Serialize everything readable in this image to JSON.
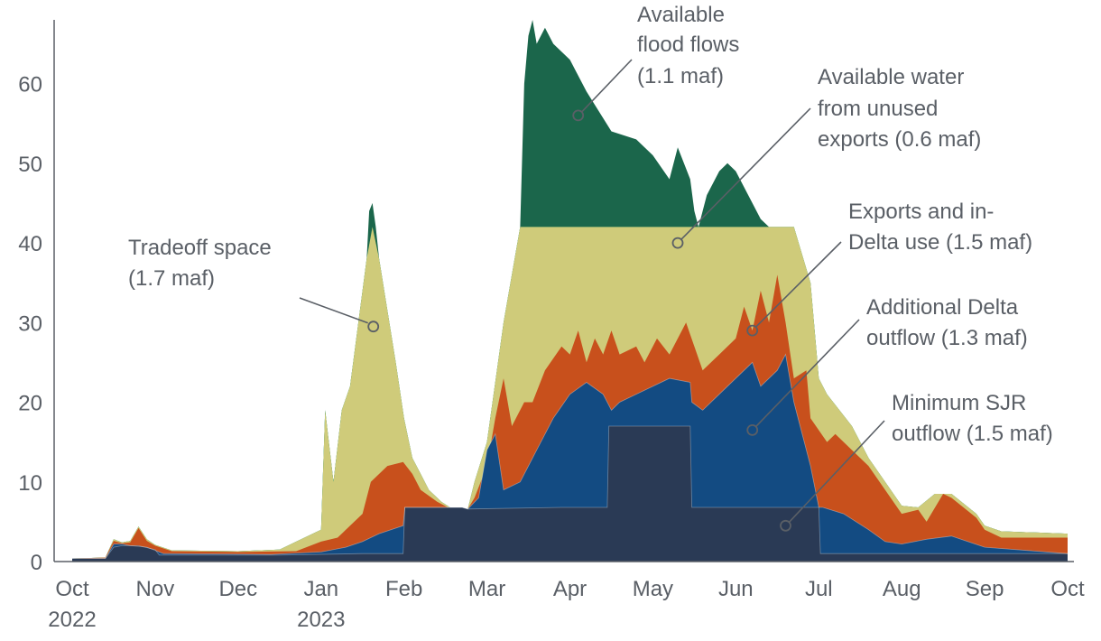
{
  "chart_data": {
    "type": "area",
    "stacked": true,
    "units": "thousand cfs",
    "ylim": [
      0,
      68
    ],
    "yticks": [
      0,
      10,
      20,
      30,
      40,
      50,
      60
    ],
    "xlim": [
      0,
      12
    ],
    "xticks": [
      {
        "pos": 0,
        "label": "Oct",
        "label2": "2022"
      },
      {
        "pos": 1,
        "label": "Nov",
        "label2": ""
      },
      {
        "pos": 2,
        "label": "Dec",
        "label2": ""
      },
      {
        "pos": 3,
        "label": "Jan",
        "label2": "2023"
      },
      {
        "pos": 4,
        "label": "Feb",
        "label2": ""
      },
      {
        "pos": 5,
        "label": "Mar",
        "label2": ""
      },
      {
        "pos": 6,
        "label": "Apr",
        "label2": ""
      },
      {
        "pos": 7,
        "label": "May",
        "label2": ""
      },
      {
        "pos": 8,
        "label": "Jun",
        "label2": ""
      },
      {
        "pos": 9,
        "label": "Jul",
        "label2": ""
      },
      {
        "pos": 10,
        "label": "Aug",
        "label2": ""
      },
      {
        "pos": 11,
        "label": "Sep",
        "label2": ""
      },
      {
        "pos": 12,
        "label": "Oct",
        "label2": ""
      }
    ],
    "colors": {
      "min_sjr": "#2a3a55",
      "additional_outflow": "#134b82",
      "exports": "#c8501c",
      "tradeoff": "#cfcb7a",
      "unused_exports": "#17996a",
      "flood": "#1b664b"
    },
    "cumulative": {
      "min_sjr": [
        [
          0,
          0.4
        ],
        [
          0.4,
          0.4
        ],
        [
          0.5,
          1.8
        ],
        [
          0.6,
          2
        ],
        [
          0.8,
          2
        ],
        [
          1,
          1.5
        ],
        [
          1.05,
          0.8
        ],
        [
          2.5,
          0.8
        ],
        [
          3.5,
          1
        ],
        [
          3.99,
          1
        ],
        [
          4.01,
          6.8
        ],
        [
          4.7,
          6.8
        ],
        [
          4.77,
          6.6
        ],
        [
          5.9,
          6.8
        ],
        [
          6.45,
          6.8
        ],
        [
          6.47,
          17
        ],
        [
          7.45,
          17
        ],
        [
          7.47,
          6.8
        ],
        [
          9,
          6.8
        ],
        [
          9.02,
          1
        ],
        [
          12,
          1
        ]
      ],
      "additional_outflow": [
        [
          0,
          0.4
        ],
        [
          0.4,
          0.4
        ],
        [
          0.5,
          2.2
        ],
        [
          0.6,
          2.2
        ],
        [
          0.7,
          2
        ],
        [
          0.9,
          1.8
        ],
        [
          1,
          1.4
        ],
        [
          1.1,
          1
        ],
        [
          2.4,
          0.9
        ],
        [
          3,
          1.2
        ],
        [
          3.3,
          1.8
        ],
        [
          3.5,
          2.5
        ],
        [
          3.7,
          3.5
        ],
        [
          3.99,
          4.5
        ],
        [
          4.01,
          6.8
        ],
        [
          4.7,
          6.8
        ],
        [
          4.77,
          6.6
        ],
        [
          4.9,
          8
        ],
        [
          5,
          14
        ],
        [
          5.1,
          16
        ],
        [
          5.2,
          9
        ],
        [
          5.4,
          10
        ],
        [
          5.6,
          14
        ],
        [
          5.8,
          18
        ],
        [
          6,
          21
        ],
        [
          6.2,
          22.5
        ],
        [
          6.4,
          21
        ],
        [
          6.45,
          20
        ],
        [
          6.5,
          19
        ],
        [
          6.6,
          20
        ],
        [
          6.8,
          21
        ],
        [
          7,
          22
        ],
        [
          7.2,
          23
        ],
        [
          7.45,
          22.5
        ],
        [
          7.47,
          20
        ],
        [
          7.6,
          19
        ],
        [
          7.8,
          21
        ],
        [
          8,
          23
        ],
        [
          8.2,
          25
        ],
        [
          8.3,
          22
        ],
        [
          8.5,
          24
        ],
        [
          8.6,
          26
        ],
        [
          8.7,
          20
        ],
        [
          8.9,
          12
        ],
        [
          9,
          6.8
        ],
        [
          9.05,
          6.8
        ],
        [
          9.3,
          6
        ],
        [
          9.6,
          4
        ],
        [
          9.8,
          2.5
        ],
        [
          10,
          2.2
        ],
        [
          10.3,
          2.8
        ],
        [
          10.6,
          3.2
        ],
        [
          11,
          1.8
        ],
        [
          12,
          1
        ]
      ],
      "exports": [
        [
          0,
          0.4
        ],
        [
          0.4,
          0.5
        ],
        [
          0.5,
          2.6
        ],
        [
          0.6,
          2.3
        ],
        [
          0.7,
          2.4
        ],
        [
          0.8,
          4.2
        ],
        [
          0.9,
          2.6
        ],
        [
          1,
          2
        ],
        [
          1.2,
          1.3
        ],
        [
          2,
          1.2
        ],
        [
          2.7,
          1.3
        ],
        [
          3,
          2.5
        ],
        [
          3.2,
          3
        ],
        [
          3.5,
          6
        ],
        [
          3.6,
          10
        ],
        [
          3.8,
          12
        ],
        [
          3.99,
          12.5
        ],
        [
          4.1,
          11
        ],
        [
          4.2,
          9
        ],
        [
          4.4,
          7.5
        ],
        [
          4.6,
          6.4
        ],
        [
          4.77,
          6.6
        ],
        [
          4.85,
          8
        ],
        [
          5,
          12
        ],
        [
          5.1,
          18
        ],
        [
          5.2,
          23
        ],
        [
          5.3,
          17
        ],
        [
          5.45,
          20
        ],
        [
          5.55,
          20
        ],
        [
          5.7,
          24
        ],
        [
          5.9,
          27
        ],
        [
          6,
          26
        ],
        [
          6.1,
          29
        ],
        [
          6.2,
          25
        ],
        [
          6.3,
          28
        ],
        [
          6.4,
          26
        ],
        [
          6.5,
          29
        ],
        [
          6.6,
          26
        ],
        [
          6.8,
          27
        ],
        [
          6.9,
          25
        ],
        [
          7.05,
          28
        ],
        [
          7.2,
          26
        ],
        [
          7.4,
          30
        ],
        [
          7.5,
          27
        ],
        [
          7.6,
          24
        ],
        [
          7.8,
          26
        ],
        [
          8,
          28
        ],
        [
          8.1,
          32
        ],
        [
          8.2,
          29
        ],
        [
          8.3,
          34
        ],
        [
          8.4,
          30
        ],
        [
          8.5,
          36
        ],
        [
          8.6,
          30
        ],
        [
          8.7,
          23
        ],
        [
          8.85,
          24
        ],
        [
          8.9,
          18
        ],
        [
          9.1,
          15
        ],
        [
          9.2,
          16
        ],
        [
          9.4,
          14
        ],
        [
          9.6,
          12
        ],
        [
          9.8,
          9
        ],
        [
          10,
          6
        ],
        [
          10.2,
          6.5
        ],
        [
          10.3,
          5
        ],
        [
          10.5,
          8.5
        ],
        [
          10.6,
          8
        ],
        [
          10.9,
          5.5
        ],
        [
          11,
          4
        ],
        [
          11.2,
          3
        ],
        [
          12,
          3
        ]
      ],
      "tradeoff": [
        [
          0,
          0.4
        ],
        [
          0.4,
          0.5
        ],
        [
          0.5,
          2.8
        ],
        [
          0.6,
          2.4
        ],
        [
          0.7,
          2.6
        ],
        [
          0.8,
          4.4
        ],
        [
          0.9,
          2.8
        ],
        [
          1,
          2.1
        ],
        [
          1.2,
          1.4
        ],
        [
          2,
          1.3
        ],
        [
          2.5,
          1.5
        ],
        [
          2.8,
          3
        ],
        [
          3,
          4
        ],
        [
          3.05,
          19
        ],
        [
          3.15,
          10
        ],
        [
          3.25,
          19
        ],
        [
          3.35,
          22
        ],
        [
          3.45,
          30
        ],
        [
          3.55,
          38
        ],
        [
          3.62,
          42
        ],
        [
          3.7,
          38
        ],
        [
          3.9,
          25
        ],
        [
          4,
          18
        ],
        [
          4.1,
          13
        ],
        [
          4.2,
          11
        ],
        [
          4.3,
          9
        ],
        [
          4.45,
          7.5
        ],
        [
          4.6,
          6.5
        ],
        [
          4.77,
          6.6
        ],
        [
          4.85,
          10
        ],
        [
          5,
          15
        ],
        [
          5.2,
          30
        ],
        [
          5.4,
          42
        ],
        [
          6,
          42
        ],
        [
          6.45,
          42
        ],
        [
          6.5,
          42
        ],
        [
          7.45,
          42
        ],
        [
          7.5,
          42
        ],
        [
          8,
          42
        ],
        [
          8.7,
          42
        ],
        [
          8.9,
          35
        ],
        [
          9,
          23
        ],
        [
          9.1,
          21
        ],
        [
          9.4,
          17
        ],
        [
          9.6,
          13
        ],
        [
          9.8,
          10
        ],
        [
          10,
          7
        ],
        [
          10.2,
          6.8
        ],
        [
          10.4,
          8.5
        ],
        [
          10.6,
          8.5
        ],
        [
          10.9,
          6
        ],
        [
          11,
          4.5
        ],
        [
          11.2,
          3.8
        ],
        [
          12,
          3.5
        ]
      ],
      "unused_exports": [
        [
          0,
          0.4
        ],
        [
          0.4,
          0.5
        ],
        [
          0.5,
          2.8
        ],
        [
          0.6,
          2.4
        ],
        [
          0.7,
          2.6
        ],
        [
          0.8,
          4.4
        ],
        [
          0.9,
          2.8
        ],
        [
          1,
          2.1
        ],
        [
          1.2,
          1.4
        ],
        [
          2,
          1.3
        ],
        [
          2.5,
          1.5
        ],
        [
          2.8,
          3
        ],
        [
          3,
          4
        ],
        [
          3.05,
          19
        ],
        [
          3.15,
          10
        ],
        [
          3.25,
          19
        ],
        [
          3.35,
          22
        ],
        [
          3.45,
          30
        ],
        [
          3.55,
          38
        ],
        [
          3.62,
          42
        ],
        [
          3.7,
          38
        ],
        [
          3.9,
          25
        ],
        [
          4,
          18
        ],
        [
          4.1,
          13
        ],
        [
          4.2,
          11
        ],
        [
          4.3,
          9
        ],
        [
          4.45,
          7.5
        ],
        [
          4.6,
          6.5
        ],
        [
          4.77,
          6.6
        ],
        [
          4.85,
          10
        ],
        [
          5,
          15
        ],
        [
          5.2,
          30
        ],
        [
          5.4,
          42
        ],
        [
          6,
          42
        ],
        [
          6.45,
          42
        ],
        [
          6.5,
          42
        ],
        [
          7.45,
          42
        ],
        [
          7.5,
          42
        ],
        [
          8,
          42
        ],
        [
          8.7,
          42
        ],
        [
          8.9,
          35
        ],
        [
          9,
          23
        ],
        [
          9.1,
          21
        ],
        [
          9.4,
          17
        ],
        [
          9.6,
          13
        ],
        [
          9.8,
          10
        ],
        [
          10,
          7
        ],
        [
          10.2,
          6.8
        ],
        [
          10.4,
          8.5
        ],
        [
          10.6,
          8.5
        ],
        [
          10.9,
          6
        ],
        [
          11,
          4.5
        ],
        [
          11.2,
          3.8
        ],
        [
          12,
          3.5
        ]
      ],
      "flood": [
        [
          0,
          0.4
        ],
        [
          0.4,
          0.5
        ],
        [
          0.5,
          2.8
        ],
        [
          0.6,
          2.4
        ],
        [
          0.7,
          2.6
        ],
        [
          0.8,
          4.4
        ],
        [
          0.9,
          2.8
        ],
        [
          1,
          2.1
        ],
        [
          1.2,
          1.4
        ],
        [
          2,
          1.3
        ],
        [
          2.5,
          1.5
        ],
        [
          2.8,
          3
        ],
        [
          3,
          4
        ],
        [
          3.05,
          19
        ],
        [
          3.15,
          10
        ],
        [
          3.25,
          19
        ],
        [
          3.35,
          22
        ],
        [
          3.45,
          30
        ],
        [
          3.55,
          38
        ],
        [
          3.58,
          44
        ],
        [
          3.62,
          45
        ],
        [
          3.66,
          42
        ],
        [
          3.7,
          38
        ],
        [
          3.9,
          25
        ],
        [
          4,
          18
        ],
        [
          4.1,
          13
        ],
        [
          4.2,
          11
        ],
        [
          4.3,
          9
        ],
        [
          4.45,
          7.5
        ],
        [
          4.6,
          6.5
        ],
        [
          4.77,
          6.6
        ],
        [
          4.85,
          10
        ],
        [
          5,
          15
        ],
        [
          5.2,
          30
        ],
        [
          5.4,
          42
        ],
        [
          5.45,
          60
        ],
        [
          5.5,
          66
        ],
        [
          5.55,
          68
        ],
        [
          5.6,
          65
        ],
        [
          5.7,
          67
        ],
        [
          5.8,
          65
        ],
        [
          6,
          63
        ],
        [
          6.2,
          59
        ],
        [
          6.5,
          54
        ],
        [
          6.8,
          53
        ],
        [
          7,
          51
        ],
        [
          7.2,
          48
        ],
        [
          7.3,
          52
        ],
        [
          7.45,
          48
        ],
        [
          7.5,
          44
        ],
        [
          7.55,
          42
        ],
        [
          7.65,
          46
        ],
        [
          7.8,
          49
        ],
        [
          7.9,
          50
        ],
        [
          8,
          49
        ],
        [
          8.15,
          46
        ],
        [
          8.3,
          43
        ],
        [
          8.4,
          42
        ],
        [
          8.7,
          42
        ],
        [
          8.9,
          35
        ],
        [
          9,
          23
        ],
        [
          9.1,
          21
        ],
        [
          9.4,
          17
        ],
        [
          9.6,
          13
        ],
        [
          9.8,
          10
        ],
        [
          10,
          7
        ],
        [
          10.2,
          6.8
        ],
        [
          10.4,
          8.5
        ],
        [
          10.6,
          8.5
        ],
        [
          10.9,
          6
        ],
        [
          11,
          4.5
        ],
        [
          11.2,
          3.8
        ],
        [
          12,
          3.5
        ]
      ]
    },
    "annotations": {
      "flood": {
        "line1": "Available",
        "line2": "flood flows",
        "line3": "(1.1 maf)",
        "marker": [
          6.1,
          56
        ]
      },
      "unused": {
        "line1": "Available water",
        "line2": "from unused",
        "line3": "exports (0.6 maf)",
        "marker": [
          7.3,
          40
        ]
      },
      "exports": {
        "line1": "Exports and in-",
        "line2": "Delta use (1.5 maf)",
        "marker": [
          8.2,
          29
        ]
      },
      "additional": {
        "line1": "Additional Delta",
        "line2": "outflow (1.3 maf)",
        "marker": [
          8.2,
          16.5
        ]
      },
      "minsjr": {
        "line1": "Minimum SJR",
        "line2": "outflow (1.5 maf)",
        "marker": [
          8.6,
          4.5
        ]
      },
      "tradeoff": {
        "line1": "Tradeoff space",
        "line2": "(1.7 maf)",
        "marker": [
          3.63,
          29.5
        ]
      }
    }
  }
}
